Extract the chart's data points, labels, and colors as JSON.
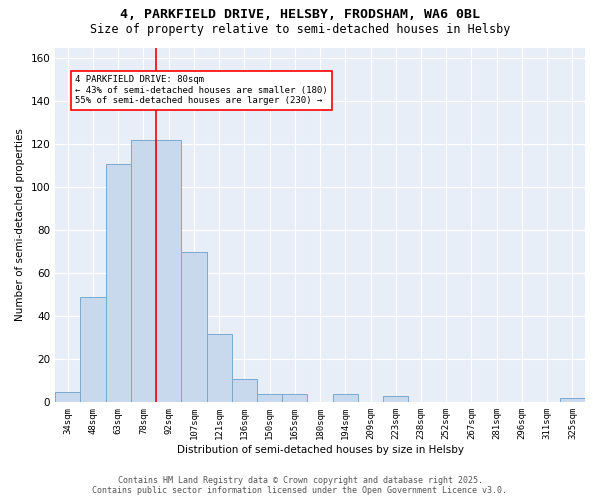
{
  "title_line1": "4, PARKFIELD DRIVE, HELSBY, FRODSHAM, WA6 0BL",
  "title_line2": "Size of property relative to semi-detached houses in Helsby",
  "xlabel": "Distribution of semi-detached houses by size in Helsby",
  "ylabel": "Number of semi-detached properties",
  "categories": [
    "34sqm",
    "48sqm",
    "63sqm",
    "78sqm",
    "92sqm",
    "107sqm",
    "121sqm",
    "136sqm",
    "150sqm",
    "165sqm",
    "180sqm",
    "194sqm",
    "209sqm",
    "223sqm",
    "238sqm",
    "252sqm",
    "267sqm",
    "281sqm",
    "296sqm",
    "311sqm",
    "325sqm"
  ],
  "values": [
    5,
    49,
    111,
    122,
    122,
    70,
    32,
    11,
    4,
    4,
    0,
    4,
    0,
    3,
    0,
    0,
    0,
    0,
    0,
    0,
    2
  ],
  "bar_color": "#c9d9ed",
  "bar_edge_color": "#7aaad0",
  "vline_x": 3.5,
  "vline_color": "red",
  "annotation_text": "4 PARKFIELD DRIVE: 80sqm\n← 43% of semi-detached houses are smaller (180)\n55% of semi-detached houses are larger (230) →",
  "annotation_box_color": "white",
  "annotation_box_edge": "red",
  "ylim": [
    0,
    165
  ],
  "yticks": [
    0,
    20,
    40,
    60,
    80,
    100,
    120,
    140,
    160
  ],
  "background_color": "#e8eef8",
  "grid_color": "white",
  "footer_line1": "Contains HM Land Registry data © Crown copyright and database right 2025.",
  "footer_line2": "Contains public sector information licensed under the Open Government Licence v3.0."
}
